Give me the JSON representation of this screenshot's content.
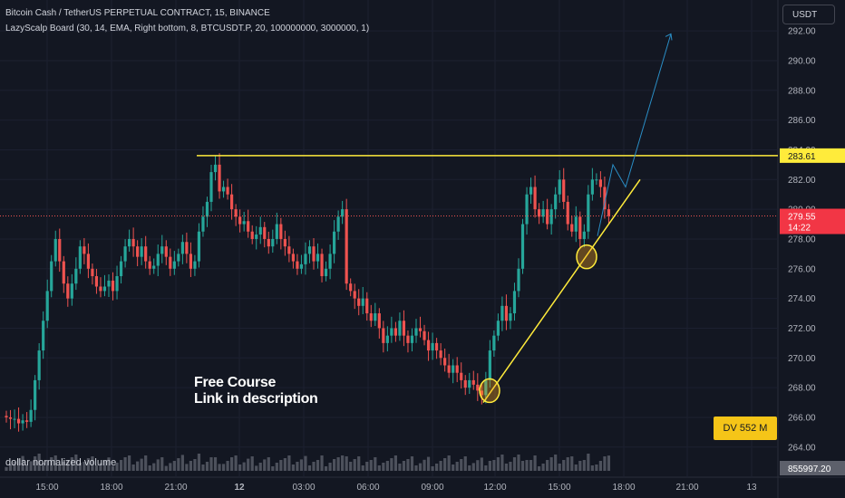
{
  "header": {
    "title": "Bitcoin Cash / TetherUS PERPETUAL CONTRACT, 15, BINANCE",
    "indicator": "LazyScalp Board (30, 14, EMA, Right bottom, 8, BTCUSDT.P, 20, 100000000, 3000000, 1)"
  },
  "currency_button": "USDT",
  "annotation": {
    "line1": "Free Course",
    "line2": "Link in description"
  },
  "dv_badge": "DV 552 M",
  "volume_label": "dollar normalized volume",
  "price_labels": {
    "resistance": "283.61",
    "last": "279.55",
    "countdown": "14:22",
    "volume_value": "855997.20"
  },
  "colors": {
    "background": "#131722",
    "up": "#26a69a",
    "down": "#ef5350",
    "level": "#ffeb3b",
    "projection": "#2a8ec6",
    "dv_badge": "#f5c518"
  },
  "chart_data": {
    "type": "candlestick",
    "y_axis": {
      "ticks": [
        "264.00",
        "266.00",
        "268.00",
        "270.00",
        "272.00",
        "274.00",
        "276.00",
        "278.00",
        "280.00",
        "282.00",
        "284.00",
        "286.00",
        "288.00",
        "290.00",
        "292.00"
      ],
      "range": [
        263.5,
        293.5
      ]
    },
    "x_axis": {
      "ticks": [
        "15:00",
        "18:00",
        "21:00",
        "12",
        "03:00",
        "06:00",
        "09:00",
        "12:00",
        "15:00",
        "18:00",
        "21:00",
        "13"
      ]
    },
    "close": [
      266.0,
      265.9,
      265.9,
      265.6,
      265.8,
      265.7,
      266.5,
      268.5,
      270.5,
      272.5,
      274.5,
      276.5,
      278.0,
      276.5,
      275.0,
      274.0,
      275.0,
      276.0,
      277.5,
      277.0,
      276.0,
      275.5,
      274.8,
      274.5,
      274.8,
      275.2,
      274.5,
      275.5,
      276.5,
      277.5,
      278.0,
      277.5,
      276.8,
      277.5,
      276.5,
      276.0,
      276.2,
      277.0,
      277.5,
      276.8,
      276.0,
      276.5,
      277.0,
      277.8,
      277.0,
      276.0,
      276.5,
      278.5,
      279.5,
      280.5,
      282.5,
      283.0,
      281.2,
      281.5,
      281.0,
      280.0,
      279.5,
      279.0,
      279.2,
      278.5,
      278.0,
      278.3,
      278.8,
      278.0,
      277.5,
      278.0,
      279.0,
      278.0,
      277.5,
      277.0,
      276.5,
      276.0,
      276.3,
      277.0,
      277.5,
      276.5,
      277.0,
      275.5,
      276.0,
      277.0,
      278.5,
      279.5,
      280.0,
      275.0,
      274.5,
      274.0,
      273.5,
      274.0,
      273.0,
      272.5,
      273.0,
      272.0,
      271.0,
      271.5,
      272.0,
      271.5,
      272.5,
      271.5,
      271.0,
      271.5,
      272.0,
      271.8,
      271.2,
      270.5,
      271.0,
      270.5,
      270.0,
      269.5,
      269.0,
      269.5,
      269.0,
      268.5,
      268.0,
      268.5,
      268.2,
      267.8,
      267.5,
      268.5,
      270.5,
      271.5,
      272.5,
      273.5,
      272.5,
      273.0,
      274.5,
      276.0,
      279.0,
      281.0,
      281.5,
      280.0,
      279.5,
      280.0,
      279.0,
      280.0,
      281.0,
      282.0,
      280.5,
      279.0,
      278.5,
      279.5,
      278.0,
      278.5,
      281.0,
      282.0,
      282.0,
      281.5,
      280.0,
      279.55
    ],
    "annotations": {
      "resistance_level": 283.61,
      "last_price": 279.55,
      "trendline": [
        {
          "index": 116,
          "price": 267.0
        },
        {
          "index": 155,
          "price": 282.0
        }
      ],
      "projection": [
        {
          "index": 141,
          "price": 278.2
        },
        {
          "index": 147,
          "price": 283.0
        },
        {
          "index": 150,
          "price": 281.5
        },
        {
          "index": 168,
          "price": 291.8
        }
      ],
      "circles": [
        {
          "index": 117,
          "price": 267.8
        },
        {
          "index": 141,
          "price": 276.8
        }
      ]
    }
  }
}
